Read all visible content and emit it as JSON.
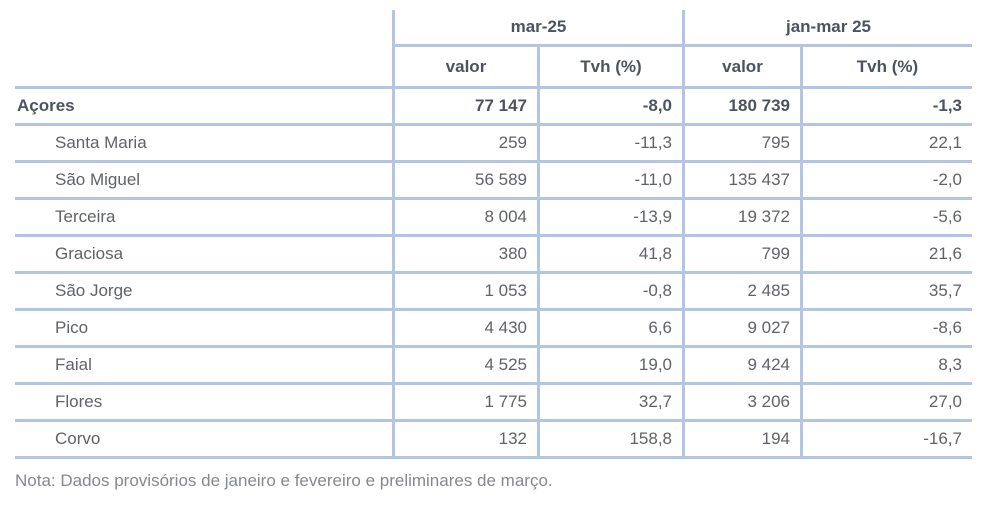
{
  "table": {
    "col_groups": [
      {
        "label": "mar-25"
      },
      {
        "label": "jan-mar 25"
      }
    ],
    "sub_headers": {
      "valor_mar": "valor",
      "tvh_mar": "Tvh (%)",
      "valor_janmar": "valor",
      "tvh_janmar": "Tvh (%)"
    },
    "rows": [
      {
        "name": "Açores",
        "cells": [
          "77 147",
          "-8,0",
          "180 739",
          "-1,3"
        ]
      },
      {
        "name": "Santa Maria",
        "cells": [
          "259",
          "-11,3",
          "795",
          "22,1"
        ]
      },
      {
        "name": "São Miguel",
        "cells": [
          "56 589",
          "-11,0",
          "135 437",
          "-2,0"
        ]
      },
      {
        "name": "Terceira",
        "cells": [
          "8 004",
          "-13,9",
          "19 372",
          "-5,6"
        ]
      },
      {
        "name": "Graciosa",
        "cells": [
          "380",
          "41,8",
          "799",
          "21,6"
        ]
      },
      {
        "name": "São Jorge",
        "cells": [
          "1 053",
          "-0,8",
          "2 485",
          "35,7"
        ]
      },
      {
        "name": "Pico",
        "cells": [
          "4 430",
          "6,6",
          "9 027",
          "-8,6"
        ]
      },
      {
        "name": "Faial",
        "cells": [
          "4 525",
          "19,0",
          "9 424",
          "8,3"
        ]
      },
      {
        "name": "Flores",
        "cells": [
          "1 775",
          "32,7",
          "3 206",
          "27,0"
        ]
      },
      {
        "name": "Corvo",
        "cells": [
          "132",
          "158,8",
          "194",
          "-16,7"
        ]
      }
    ],
    "note": "Nota: Dados provisórios de janeiro e fevereiro e preliminares de março."
  },
  "colors": {
    "border": "#b2c6e2",
    "header_text": "#4d535e",
    "body_text": "#5f6267",
    "note_text": "#85888c"
  }
}
